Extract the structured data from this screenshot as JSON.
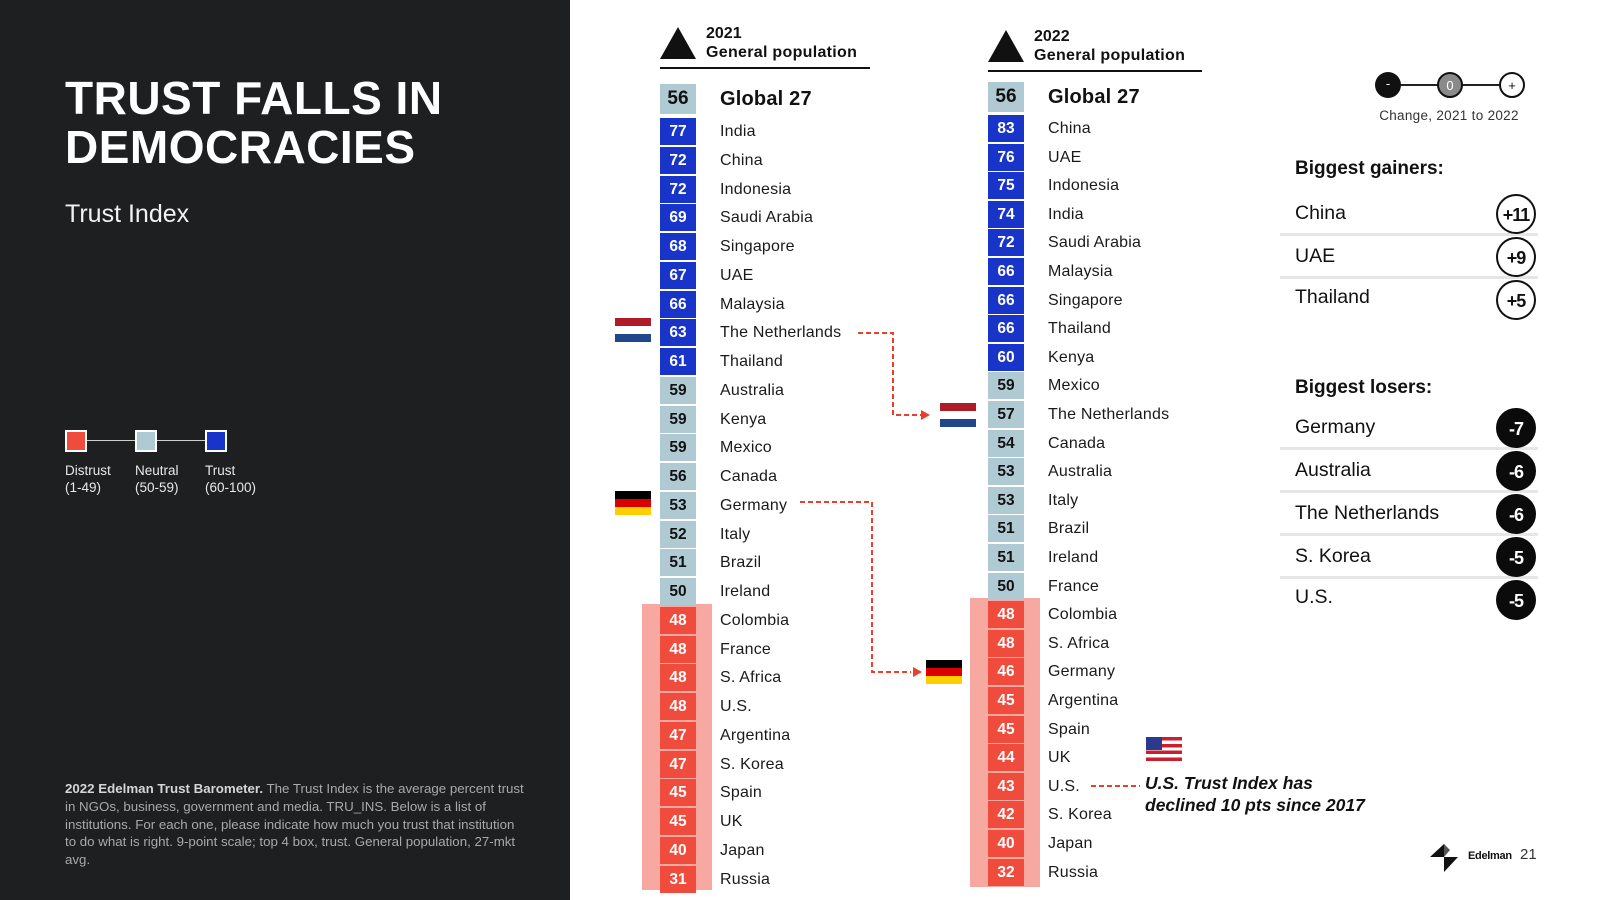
{
  "header": {
    "title": "TRUST FALLS IN DEMOCRACIES",
    "subtitle": "Trust Index"
  },
  "legend": {
    "items": [
      {
        "label": "Distrust",
        "range": "(1-49)",
        "color": "#f04c3d"
      },
      {
        "label": "Neutral",
        "range": "(50-59)",
        "color": "#b0cad3"
      },
      {
        "label": "Trust",
        "range": "(60-100)",
        "color": "#1934c8"
      }
    ]
  },
  "footnote": {
    "bold": "2022 Edelman Trust Barometer.",
    "text": " The Trust Index is the average percent trust in NGOs, business, government and media. TRU_INS. Below is a list of institutions. For each one, please indicate how much you trust that institution to do what is right. 9-point scale; top 4 box, trust. General population, 27-mkt avg."
  },
  "colors": {
    "distrust": "#f04c3d",
    "distrust_band": "#f7a8a0",
    "neutral": "#b0cad3",
    "trust": "#1934c8"
  },
  "chart_data": {
    "type": "table",
    "columns": [
      {
        "year": "2021",
        "label": "General population",
        "global": {
          "name": "Global 27",
          "value": 56
        },
        "rows": [
          {
            "name": "India",
            "value": 77
          },
          {
            "name": "China",
            "value": 72
          },
          {
            "name": "Indonesia",
            "value": 72
          },
          {
            "name": "Saudi Arabia",
            "value": 69
          },
          {
            "name": "Singapore",
            "value": 68
          },
          {
            "name": "UAE",
            "value": 67
          },
          {
            "name": "Malaysia",
            "value": 66
          },
          {
            "name": "The Netherlands",
            "value": 63
          },
          {
            "name": "Thailand",
            "value": 61
          },
          {
            "name": "Australia",
            "value": 59
          },
          {
            "name": "Kenya",
            "value": 59
          },
          {
            "name": "Mexico",
            "value": 59
          },
          {
            "name": "Canada",
            "value": 56
          },
          {
            "name": "Germany",
            "value": 53
          },
          {
            "name": "Italy",
            "value": 52
          },
          {
            "name": "Brazil",
            "value": 51
          },
          {
            "name": "Ireland",
            "value": 50
          },
          {
            "name": "Colombia",
            "value": 48
          },
          {
            "name": "France",
            "value": 48
          },
          {
            "name": "S. Africa",
            "value": 48
          },
          {
            "name": "U.S.",
            "value": 48
          },
          {
            "name": "Argentina",
            "value": 47
          },
          {
            "name": "S. Korea",
            "value": 47
          },
          {
            "name": "Spain",
            "value": 45
          },
          {
            "name": "UK",
            "value": 45
          },
          {
            "name": "Japan",
            "value": 40
          },
          {
            "name": "Russia",
            "value": 31
          }
        ]
      },
      {
        "year": "2022",
        "label": "General population",
        "global": {
          "name": "Global 27",
          "value": 56
        },
        "rows": [
          {
            "name": "China",
            "value": 83
          },
          {
            "name": "UAE",
            "value": 76
          },
          {
            "name": "Indonesia",
            "value": 75
          },
          {
            "name": "India",
            "value": 74
          },
          {
            "name": "Saudi Arabia",
            "value": 72
          },
          {
            "name": "Malaysia",
            "value": 66
          },
          {
            "name": "Singapore",
            "value": 66
          },
          {
            "name": "Thailand",
            "value": 66
          },
          {
            "name": "Kenya",
            "value": 60
          },
          {
            "name": "Mexico",
            "value": 59
          },
          {
            "name": "The Netherlands",
            "value": 57
          },
          {
            "name": "Canada",
            "value": 54
          },
          {
            "name": "Australia",
            "value": 53
          },
          {
            "name": "Italy",
            "value": 53
          },
          {
            "name": "Brazil",
            "value": 51
          },
          {
            "name": "Ireland",
            "value": 51
          },
          {
            "name": "France",
            "value": 50
          },
          {
            "name": "Colombia",
            "value": 48
          },
          {
            "name": "S. Africa",
            "value": 48
          },
          {
            "name": "Germany",
            "value": 46
          },
          {
            "name": "Argentina",
            "value": 45
          },
          {
            "name": "Spain",
            "value": 45
          },
          {
            "name": "UK",
            "value": 44
          },
          {
            "name": "U.S.",
            "value": 43
          },
          {
            "name": "S. Korea",
            "value": 42
          },
          {
            "name": "Japan",
            "value": 40
          },
          {
            "name": "Russia",
            "value": 32
          }
        ]
      }
    ]
  },
  "change_scale": {
    "minus": "-",
    "zero": "0",
    "plus": "+",
    "label": "Change, 2021 to 2022"
  },
  "gainers": {
    "title": "Biggest gainers:",
    "items": [
      {
        "name": "China",
        "change": "+11"
      },
      {
        "name": "UAE",
        "change": "+9"
      },
      {
        "name": "Thailand",
        "change": "+5"
      }
    ]
  },
  "losers": {
    "title": "Biggest losers:",
    "items": [
      {
        "name": "Germany",
        "change": "-7"
      },
      {
        "name": "Australia",
        "change": "-6"
      },
      {
        "name": "The Netherlands",
        "change": "-6"
      },
      {
        "name": "S. Korea",
        "change": "-5"
      },
      {
        "name": "U.S.",
        "change": "-5"
      }
    ]
  },
  "us_note": {
    "line1": "U.S. Trust Index has",
    "line2": "declined 10 pts since 2017"
  },
  "brand": {
    "name": "Edelman",
    "page": "21"
  }
}
